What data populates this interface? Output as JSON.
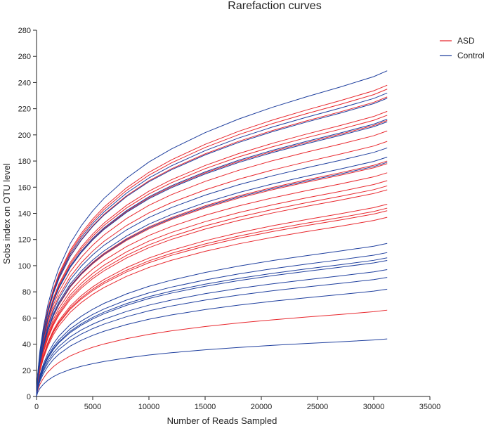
{
  "chart_data": {
    "type": "line",
    "title": "Rarefaction curves",
    "xlabel": "Number of Reads Sampled",
    "ylabel": "Sobs index on OTU level",
    "xlim": [
      0,
      35000
    ],
    "ylim": [
      0,
      280
    ],
    "xticks": [
      0,
      5000,
      10000,
      15000,
      20000,
      25000,
      30000,
      35000
    ],
    "yticks": [
      0,
      20,
      40,
      60,
      80,
      100,
      120,
      140,
      160,
      180,
      200,
      220,
      240,
      260,
      280
    ],
    "legend": {
      "placement": "top-right",
      "entries": [
        {
          "name": "ASD",
          "color": "#e8282e"
        },
        {
          "name": "Control",
          "color": "#1f3f9e"
        }
      ]
    },
    "x": [
      0,
      100,
      300,
      600,
      1000,
      1500,
      2000,
      3000,
      4000,
      5000,
      6000,
      8000,
      10000,
      12000,
      15000,
      18000,
      21000,
      24000,
      27000,
      30000,
      31200
    ],
    "series_shape": [
      0,
      0.068,
      0.14,
      0.21,
      0.28,
      0.345,
      0.395,
      0.47,
      0.525,
      0.57,
      0.608,
      0.67,
      0.72,
      0.76,
      0.81,
      0.852,
      0.888,
      0.92,
      0.95,
      0.982,
      1.0
    ],
    "series": [
      {
        "name": "ASD",
        "group": "ASD",
        "final": 238
      },
      {
        "name": "ASD",
        "group": "ASD",
        "final": 235
      },
      {
        "name": "ASD",
        "group": "ASD",
        "final": 229
      },
      {
        "name": "ASD",
        "group": "ASD",
        "final": 218
      },
      {
        "name": "ASD",
        "group": "ASD",
        "final": 215
      },
      {
        "name": "ASD",
        "group": "ASD",
        "final": 211
      },
      {
        "name": "ASD",
        "group": "ASD",
        "final": 203
      },
      {
        "name": "ASD",
        "group": "ASD",
        "final": 195
      },
      {
        "name": "ASD",
        "group": "ASD",
        "final": 180
      },
      {
        "name": "ASD",
        "group": "ASD",
        "final": 178
      },
      {
        "name": "ASD",
        "group": "ASD",
        "final": 171
      },
      {
        "name": "ASD",
        "group": "ASD",
        "final": 165
      },
      {
        "name": "ASD",
        "group": "ASD",
        "final": 161
      },
      {
        "name": "ASD",
        "group": "ASD",
        "final": 158
      },
      {
        "name": "ASD",
        "group": "ASD",
        "final": 147
      },
      {
        "name": "ASD",
        "group": "ASD",
        "final": 144
      },
      {
        "name": "ASD",
        "group": "ASD",
        "final": 142
      },
      {
        "name": "ASD",
        "group": "ASD",
        "final": 137
      },
      {
        "name": "ASD",
        "group": "ASD",
        "final": 66
      },
      {
        "name": "Control",
        "group": "Control",
        "final": 249
      },
      {
        "name": "Control",
        "group": "Control",
        "final": 232
      },
      {
        "name": "Control",
        "group": "Control",
        "final": 228
      },
      {
        "name": "Control",
        "group": "Control",
        "final": 212
      },
      {
        "name": "Control",
        "group": "Control",
        "final": 210
      },
      {
        "name": "Control",
        "group": "Control",
        "final": 190
      },
      {
        "name": "Control",
        "group": "Control",
        "final": 183
      },
      {
        "name": "Control",
        "group": "Control",
        "final": 179
      },
      {
        "name": "Control",
        "group": "Control",
        "final": 117
      },
      {
        "name": "Control",
        "group": "Control",
        "final": 110
      },
      {
        "name": "Control",
        "group": "Control",
        "final": 106
      },
      {
        "name": "Control",
        "group": "Control",
        "final": 104
      },
      {
        "name": "Control",
        "group": "Control",
        "final": 97
      },
      {
        "name": "Control",
        "group": "Control",
        "final": 91
      },
      {
        "name": "Control",
        "group": "Control",
        "final": 82
      },
      {
        "name": "Control",
        "group": "Control",
        "final": 44
      }
    ]
  }
}
